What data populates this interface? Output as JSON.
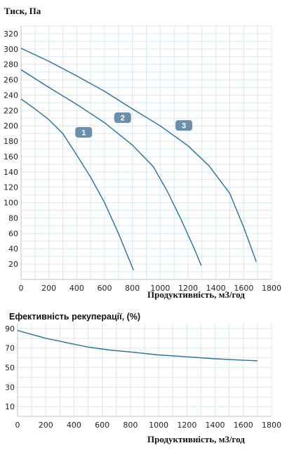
{
  "chart_data": [
    {
      "type": "line",
      "title": "Тиск, Па",
      "xlabel": "Продуктивність, м3/год",
      "ylabel": "",
      "xlim": [
        0,
        1800
      ],
      "ylim": [
        0,
        330
      ],
      "x_ticks": [
        0,
        200,
        400,
        600,
        800,
        1000,
        1200,
        1400,
        1600,
        1800
      ],
      "y_ticks": [
        20,
        40,
        60,
        80,
        100,
        120,
        140,
        160,
        180,
        200,
        220,
        240,
        260,
        280,
        300,
        320
      ],
      "grid": true,
      "series": [
        {
          "name": "1",
          "x": [
            0,
            100,
            200,
            300,
            400,
            500,
            600,
            700,
            808
          ],
          "y": [
            235,
            222,
            208,
            190,
            162,
            133,
            100,
            60,
            12
          ]
        },
        {
          "name": "2",
          "x": [
            0,
            200,
            400,
            600,
            800,
            950,
            1050,
            1150,
            1250,
            1295
          ],
          "y": [
            273,
            250,
            228,
            204,
            175,
            147,
            115,
            78,
            38,
            18
          ]
        },
        {
          "name": "3",
          "x": [
            0,
            200,
            400,
            600,
            800,
            1000,
            1200,
            1350,
            1500,
            1600,
            1690
          ],
          "y": [
            301,
            284,
            265,
            245,
            222,
            200,
            174,
            148,
            112,
            68,
            23
          ]
        }
      ]
    },
    {
      "type": "line",
      "title": "Ефективність рекуперації, (%)",
      "xlabel": "Продуктивність, м3/год",
      "ylabel": "",
      "xlim": [
        0,
        1800
      ],
      "ylim": [
        0,
        95
      ],
      "x_ticks": [
        0,
        200,
        400,
        600,
        800,
        1000,
        1200,
        1400,
        1600,
        1800
      ],
      "y_ticks": [
        10,
        30,
        50,
        70,
        90
      ],
      "grid": true,
      "series": [
        {
          "x": [
            0,
            200,
            400,
            500,
            650,
            800,
            1000,
            1200,
            1400,
            1600,
            1700
          ],
          "y": [
            88,
            80,
            74,
            71,
            68,
            66,
            63,
            61,
            59,
            57.5,
            57
          ]
        }
      ]
    }
  ]
}
